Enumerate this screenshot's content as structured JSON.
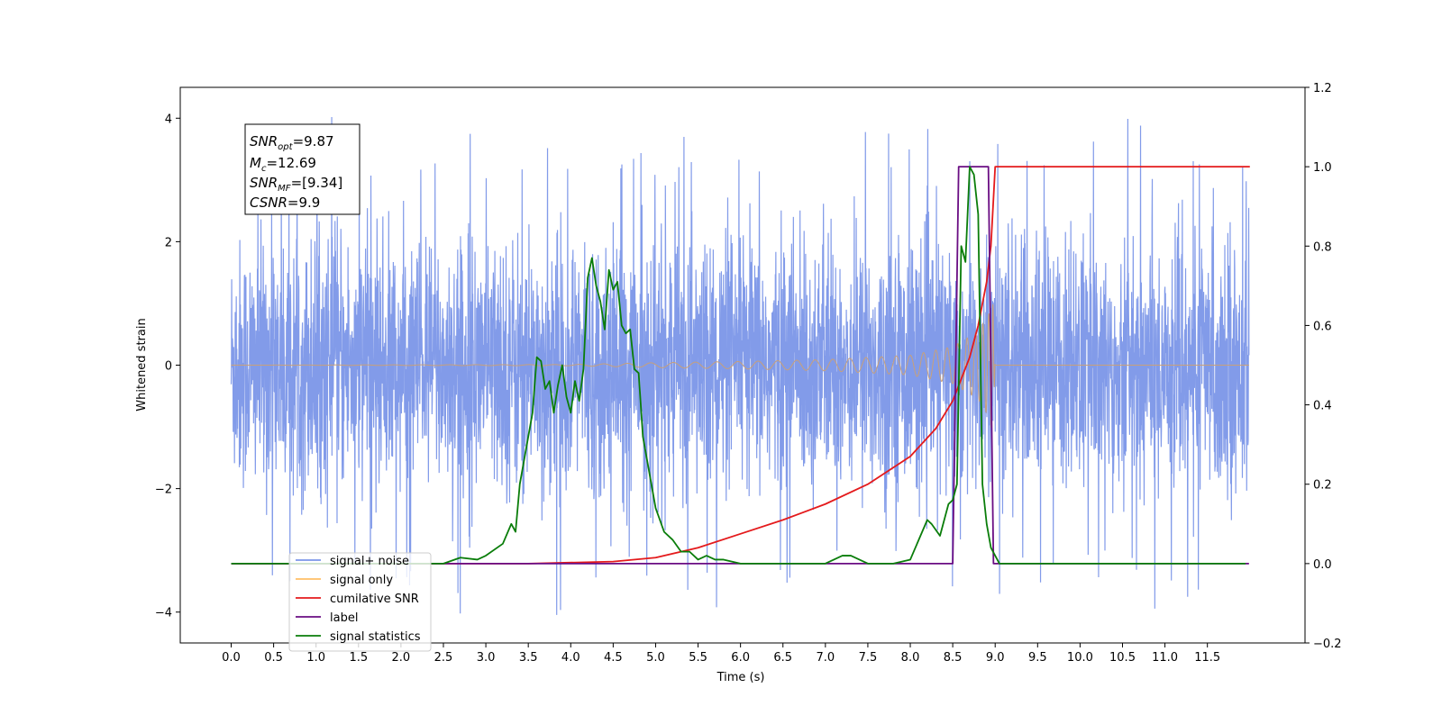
{
  "chart_data": {
    "type": "line",
    "xlabel": "Time (s)",
    "ylabel": "Whitened strain",
    "xlim": [
      -0.6,
      12.65
    ],
    "ylim_left": [
      -4.5,
      4.5
    ],
    "ylim_right": [
      -0.2,
      1.2
    ],
    "x_ticks": [
      "0.0",
      "0.5",
      "1.0",
      "1.5",
      "2.0",
      "2.5",
      "3.0",
      "3.5",
      "4.0",
      "4.5",
      "5.0",
      "5.5",
      "6.0",
      "6.5",
      "7.0",
      "7.5",
      "8.0",
      "8.5",
      "9.0",
      "9.5",
      "10.0",
      "10.5",
      "11.0",
      "11.5"
    ],
    "y_ticks_left": [
      "-4",
      "-2",
      "0",
      "2",
      "4"
    ],
    "y_ticks_right": [
      "-0.2",
      "0.0",
      "0.2",
      "0.4",
      "0.6",
      "0.8",
      "1.0",
      "1.2"
    ],
    "annotation": {
      "snr_opt": {
        "name": "SNR",
        "sub": "opt",
        "value": "=9.87"
      },
      "mc": {
        "name": "M",
        "sub": "c",
        "value": "=12.69"
      },
      "snr_mf": {
        "name": "SNR",
        "sub": "MF",
        "value": "=[9.34]"
      },
      "csnr": {
        "name": "CSNR",
        "sub": "",
        "value": "=9.9"
      }
    },
    "legend": {
      "placement": "lower-left",
      "entries": [
        {
          "label": "signal+ noise",
          "color": "#7b96e8"
        },
        {
          "label": "signal only",
          "color": "#ffbf66"
        },
        {
          "label": "cumilative SNR",
          "color": "#e41a1c"
        },
        {
          "label": "label",
          "color": "#6a0d83"
        },
        {
          "label": "signal statistics",
          "color": "#0a7d0a"
        }
      ]
    },
    "series": [
      {
        "name": "signal+ noise",
        "axis": "left",
        "color": "#7b96e8",
        "kind": "noise",
        "x_range": [
          0.0,
          11.99
        ],
        "typical_range": [
          -2.2,
          2.2
        ],
        "peak_range": [
          -4.1,
          4.1
        ]
      },
      {
        "name": "signal only",
        "axis": "left",
        "color": "#c8a07a",
        "kind": "chirp",
        "x_range": [
          0.0,
          9.0
        ],
        "envelope": [
          [
            0.0,
            0.0
          ],
          [
            4.0,
            0.01
          ],
          [
            5.0,
            0.04
          ],
          [
            6.0,
            0.06
          ],
          [
            7.0,
            0.09
          ],
          [
            8.0,
            0.16
          ],
          [
            8.5,
            0.3
          ],
          [
            8.8,
            0.55
          ],
          [
            8.93,
            0.85
          ],
          [
            8.97,
            1.15
          ],
          [
            9.0,
            0.0
          ]
        ]
      },
      {
        "name": "cumilative SNR",
        "axis": "right",
        "color": "#e41a1c",
        "x": [
          0.0,
          2.5,
          3.5,
          4.5,
          5.0,
          5.5,
          6.0,
          6.5,
          7.0,
          7.5,
          8.0,
          8.3,
          8.5,
          8.7,
          8.8,
          8.9,
          8.95,
          8.98,
          9.0,
          9.02,
          12.0
        ],
        "values": [
          0.0,
          0.0,
          0.0,
          0.005,
          0.015,
          0.04,
          0.075,
          0.11,
          0.15,
          0.2,
          0.27,
          0.34,
          0.41,
          0.52,
          0.6,
          0.71,
          0.8,
          0.92,
          1.0,
          1.0,
          1.0
        ]
      },
      {
        "name": "label",
        "axis": "right",
        "color": "#6a0d83",
        "x": [
          0.0,
          8.5,
          8.57,
          8.92,
          8.98,
          11.99
        ],
        "values": [
          0.0,
          0.0,
          1.0,
          1.0,
          0.0,
          0.0
        ]
      },
      {
        "name": "signal statistics",
        "axis": "right",
        "color": "#0a7d0a",
        "x": [
          0.0,
          2.5,
          2.7,
          2.9,
          3.0,
          3.2,
          3.3,
          3.35,
          3.4,
          3.5,
          3.55,
          3.6,
          3.65,
          3.7,
          3.75,
          3.8,
          3.85,
          3.9,
          3.95,
          4.0,
          4.05,
          4.1,
          4.15,
          4.2,
          4.25,
          4.3,
          4.35,
          4.4,
          4.45,
          4.5,
          4.55,
          4.6,
          4.65,
          4.7,
          4.75,
          4.8,
          4.85,
          4.9,
          4.95,
          5.0,
          5.05,
          5.1,
          5.2,
          5.3,
          5.4,
          5.5,
          5.6,
          5.7,
          5.8,
          6.0,
          6.2,
          6.5,
          7.0,
          7.2,
          7.3,
          7.5,
          7.8,
          8.0,
          8.2,
          8.25,
          8.35,
          8.45,
          8.5,
          8.55,
          8.6,
          8.65,
          8.7,
          8.75,
          8.8,
          8.85,
          8.9,
          8.95,
          9.0,
          9.05,
          9.1,
          9.2,
          11.95
        ],
        "values": [
          0.0,
          0.0,
          0.015,
          0.01,
          0.02,
          0.05,
          0.1,
          0.08,
          0.2,
          0.32,
          0.38,
          0.52,
          0.51,
          0.44,
          0.46,
          0.38,
          0.45,
          0.5,
          0.42,
          0.38,
          0.46,
          0.41,
          0.49,
          0.72,
          0.77,
          0.7,
          0.66,
          0.59,
          0.74,
          0.69,
          0.71,
          0.6,
          0.58,
          0.59,
          0.49,
          0.48,
          0.32,
          0.26,
          0.2,
          0.14,
          0.11,
          0.08,
          0.06,
          0.03,
          0.03,
          0.01,
          0.02,
          0.01,
          0.01,
          0.0,
          0.0,
          0.0,
          0.0,
          0.02,
          0.02,
          0.0,
          0.0,
          0.01,
          0.11,
          0.1,
          0.07,
          0.15,
          0.16,
          0.2,
          0.8,
          0.76,
          1.0,
          0.98,
          0.88,
          0.2,
          0.1,
          0.04,
          0.02,
          0.0,
          0.0,
          0.0,
          0.0
        ]
      }
    ]
  }
}
